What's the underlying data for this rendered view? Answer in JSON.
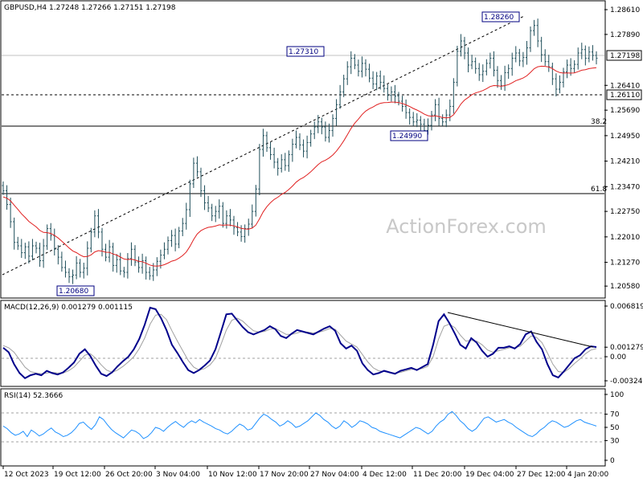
{
  "chart_data": [
    {
      "panel": "price",
      "type": "candlestick",
      "title": "GBPUSD,H4  1.27248 1.27266 1.27151 1.27198",
      "ylim": [
        1.2035,
        1.2875
      ],
      "y_ticks": [
        "1.28610",
        "1.27890",
        "1.27198",
        "1.26410",
        "1.26110",
        "1.25690",
        "1.24950",
        "1.24210",
        "1.23470",
        "1.22750",
        "1.22010",
        "1.21270",
        "1.20580"
      ],
      "current_price": "1.27198",
      "marked_level": "1.26110",
      "x_ticks": [
        "12 Oct 2023",
        "19 Oct 12:00",
        "26 Oct 20:00",
        "3 Nov 04:00",
        "10 Nov 12:00",
        "17 Nov 20:00",
        "27 Nov 04:00",
        "4 Dec 12:00",
        "11 Dec 20:00",
        "19 Dec 04:00",
        "27 Dec 12:00",
        "4 Jan 20:00"
      ],
      "annotations": [
        {
          "text": "1.20680",
          "x": "25 Oct",
          "y": 1.2068
        },
        {
          "text": "1.27310",
          "x": "28 Nov",
          "y": 1.2731
        },
        {
          "text": "1.24990",
          "x": "8 Dec",
          "y": 1.2499
        },
        {
          "text": "1.28260",
          "x": "28 Dec",
          "y": 1.2826
        }
      ],
      "fib_levels": [
        {
          "label": "38.2",
          "value": 1.2532
        },
        {
          "label": "61.8",
          "value": 1.2345
        }
      ],
      "trendline": {
        "from": {
          "x": "12 Oct",
          "y": 1.21
        },
        "to": {
          "x": "28 Dec",
          "y": 1.2826
        }
      },
      "close_series": [
        1.2335,
        1.2295,
        1.2245,
        1.2185,
        1.2175,
        1.2155,
        1.2172,
        1.2145,
        1.2175,
        1.2168,
        1.2132,
        1.2175,
        1.2225,
        1.2205,
        1.2165,
        1.2142,
        1.2112,
        1.2098,
        1.2085,
        1.209,
        1.2125,
        1.2098,
        1.211,
        1.2168,
        1.2215,
        1.2262,
        1.2215,
        1.2165,
        1.2142,
        1.2172,
        1.2118,
        1.2135,
        1.2102,
        1.2098,
        1.2138,
        1.2165,
        1.2128,
        1.2112,
        1.2132,
        1.2098,
        1.2088,
        1.2105,
        1.213,
        1.2148,
        1.2165,
        1.219,
        1.2205,
        1.218,
        1.2218,
        1.224,
        1.228,
        1.2355,
        1.2415,
        1.239,
        1.2335,
        1.23,
        1.2285,
        1.2262,
        1.2275,
        1.229,
        1.224,
        1.2262,
        1.225,
        1.2228,
        1.2215,
        1.2202,
        1.2225,
        1.2238,
        1.2275,
        1.234,
        1.2455,
        1.2495,
        1.246,
        1.244,
        1.2418,
        1.24,
        1.2425,
        1.2408,
        1.244,
        1.247,
        1.249,
        1.2468,
        1.245,
        1.2475,
        1.25,
        1.252,
        1.2535,
        1.252,
        1.249,
        1.251,
        1.2545,
        1.2585,
        1.2622,
        1.266,
        1.2695,
        1.272,
        1.27,
        1.2682,
        1.2705,
        1.2688,
        1.2662,
        1.2645,
        1.2668,
        1.265,
        1.2632,
        1.2612,
        1.2622,
        1.261,
        1.2595,
        1.258,
        1.2562,
        1.2548,
        1.2535,
        1.254,
        1.2528,
        1.251,
        1.2525,
        1.2555,
        1.2585,
        1.2545,
        1.2535,
        1.2555,
        1.258,
        1.265,
        1.274,
        1.277,
        1.2735,
        1.27,
        1.271,
        1.269,
        1.2672,
        1.2682,
        1.2705,
        1.272,
        1.2685,
        1.2655,
        1.264,
        1.2678,
        1.269,
        1.272,
        1.2735,
        1.2712,
        1.2722,
        1.275,
        1.28,
        1.2815,
        1.277,
        1.273,
        1.271,
        1.2695,
        1.266,
        1.263,
        1.265,
        1.268,
        1.27,
        1.269,
        1.2702,
        1.2735,
        1.2745,
        1.272,
        1.2738,
        1.2728,
        1.272
      ]
    },
    {
      "panel": "macd",
      "type": "line",
      "title": "MACD(12,26,9) 0.001279 0.001115",
      "ylim": [
        -0.003241,
        0.006819
      ],
      "y_ticks": [
        "0.006819",
        "0.001279",
        "0.00",
        "-0.003241"
      ],
      "series": [
        {
          "name": "MACD",
          "values": [
            0.0012,
            0.0006,
            -0.001,
            -0.0022,
            -0.0029,
            -0.0025,
            -0.0023,
            -0.0025,
            -0.0019,
            -0.0022,
            -0.0024,
            -0.0021,
            -0.0015,
            -0.0008,
            0.0004,
            0.001,
            0.0001,
            -0.0012,
            -0.0023,
            -0.0026,
            -0.0021,
            -0.0013,
            -0.0006,
            0.0,
            0.001,
            0.0024,
            0.0043,
            0.0066,
            0.0064,
            0.0052,
            0.0036,
            0.0016,
            0.0005,
            -0.0007,
            -0.0018,
            -0.0022,
            -0.0018,
            -0.0012,
            -0.0005,
            0.001,
            0.0033,
            0.0057,
            0.0058,
            0.0049,
            0.004,
            0.0033,
            0.003,
            0.0033,
            0.0036,
            0.0041,
            0.0037,
            0.0028,
            0.0025,
            0.0031,
            0.0036,
            0.0034,
            0.0032,
            0.003,
            0.0034,
            0.0038,
            0.0041,
            0.0035,
            0.0018,
            0.0011,
            0.0015,
            0.0008,
            -0.0009,
            -0.0018,
            -0.0024,
            -0.0022,
            -0.0019,
            -0.0021,
            -0.0023,
            -0.0019,
            -0.0017,
            -0.0015,
            -0.0018,
            -0.0014,
            -0.001,
            0.0016,
            0.0048,
            0.0057,
            0.0045,
            0.0031,
            0.0016,
            0.0011,
            0.0025,
            0.0019,
            0.0008,
            0.0,
            0.0004,
            0.0012,
            0.0012,
            0.0014,
            0.0011,
            0.0017,
            0.003,
            0.0034,
            0.002,
            0.001,
            -0.001,
            -0.0025,
            -0.0028,
            -0.002,
            -0.0011,
            -0.0002,
            0.0002,
            0.001,
            0.0014,
            0.0013
          ]
        },
        {
          "name": "Signal",
          "values": [
            0.0015,
            0.0012,
            0.0006,
            -0.0004,
            -0.0014,
            -0.002,
            -0.0022,
            -0.0023,
            -0.0022,
            -0.0021,
            -0.0022,
            -0.0022,
            -0.0019,
            -0.0014,
            -0.0006,
            0.0002,
            0.0004,
            -0.0002,
            -0.0011,
            -0.0018,
            -0.0021,
            -0.0018,
            -0.0013,
            -0.0007,
            0.0,
            0.0011,
            0.0025,
            0.0044,
            0.0056,
            0.0057,
            0.005,
            0.0035,
            0.0021,
            0.0008,
            -0.0005,
            -0.0014,
            -0.0018,
            -0.0016,
            -0.0011,
            -0.0002,
            0.0016,
            0.0036,
            0.0049,
            0.0052,
            0.0048,
            0.0041,
            0.0035,
            0.0033,
            0.0034,
            0.0037,
            0.0038,
            0.0034,
            0.003,
            0.003,
            0.0032,
            0.0034,
            0.0033,
            0.0032,
            0.0033,
            0.0035,
            0.0038,
            0.0037,
            0.0029,
            0.0021,
            0.0017,
            0.0013,
            0.0003,
            -0.0007,
            -0.0015,
            -0.0019,
            -0.002,
            -0.0021,
            -0.0022,
            -0.0021,
            -0.0019,
            -0.0017,
            -0.0017,
            -0.0016,
            -0.0013,
            0.0,
            0.0024,
            0.0041,
            0.0044,
            0.0039,
            0.0029,
            0.0021,
            0.0022,
            0.0021,
            0.0016,
            0.0009,
            0.0006,
            0.0008,
            0.001,
            0.0012,
            0.0012,
            0.0014,
            0.0021,
            0.0028,
            0.0026,
            0.0019,
            0.0005,
            -0.001,
            -0.002,
            -0.0021,
            -0.0016,
            -0.0009,
            -0.0003,
            0.0004,
            0.0009,
            0.0011
          ]
        }
      ]
    },
    {
      "panel": "rsi",
      "type": "line",
      "title": "RSI(14) 52.3666",
      "ylim": [
        0,
        100
      ],
      "y_ticks": [
        "100",
        "70",
        "50",
        "30",
        "0"
      ],
      "series": [
        {
          "name": "RSI",
          "values": [
            52,
            48,
            42,
            38,
            40,
            44,
            36,
            46,
            42,
            37,
            40,
            45,
            49,
            43,
            40,
            36,
            38,
            42,
            48,
            56,
            58,
            52,
            47,
            54,
            66,
            62,
            54,
            47,
            42,
            38,
            34,
            40,
            46,
            44,
            40,
            33,
            36,
            42,
            50,
            48,
            44,
            50,
            55,
            59,
            54,
            50,
            56,
            60,
            57,
            62,
            58,
            55,
            52,
            48,
            46,
            42,
            40,
            44,
            50,
            55,
            52,
            46,
            48,
            56,
            64,
            70,
            67,
            62,
            58,
            52,
            55,
            60,
            56,
            50,
            52,
            56,
            60,
            66,
            72,
            68,
            62,
            58,
            52,
            48,
            52,
            60,
            56,
            50,
            54,
            60,
            58,
            55,
            50,
            48,
            44,
            42,
            40,
            38,
            36,
            34,
            38,
            42,
            46,
            50,
            48,
            44,
            40,
            44,
            52,
            58,
            62,
            70,
            74,
            68,
            60,
            55,
            48,
            44,
            48,
            56,
            64,
            66,
            62,
            58,
            60,
            62,
            58,
            55,
            50,
            46,
            42,
            38,
            36,
            40,
            46,
            50,
            56,
            60,
            58,
            54,
            50,
            52,
            56,
            60,
            62,
            58,
            56,
            54,
            52
          ]
        }
      ]
    }
  ],
  "watermark": "ActionForex.com"
}
